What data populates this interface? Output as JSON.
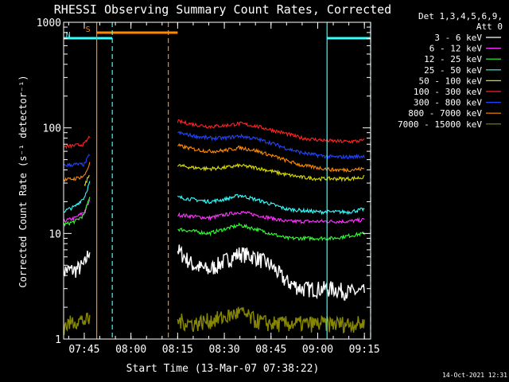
{
  "chart_data": {
    "type": "line",
    "title": "RHESSI Observing Summary Count Rates, Corrected",
    "xlabel": "Start Time (13-Mar-07 07:38:22)",
    "ylabel": "Corrected Count Rate (s⁻¹ detector⁻¹)",
    "yscale": "log",
    "ylim": [
      1,
      1000
    ],
    "xlim": [
      "07:38:22",
      "09:17:00"
    ],
    "x_ticks": [
      "07:45",
      "08:00",
      "08:15",
      "08:30",
      "08:45",
      "09:00",
      "09:15"
    ],
    "y_ticks": [
      "1",
      "10",
      "100",
      "1000"
    ],
    "legend_header": [
      "Det 1,3,4,5,6,9,",
      "Att 0"
    ],
    "legend_placement": "right",
    "timestamp": "14-Oct-2021 12:31",
    "series": [
      {
        "name": "3 - 6 keV",
        "color": "#ffffff",
        "x": [
          "07:38",
          "07:42",
          "07:45",
          "07:47",
          "08:15",
          "08:20",
          "08:25",
          "08:30",
          "08:35",
          "08:40",
          "08:45",
          "08:50",
          "08:55",
          "09:00",
          "09:05",
          "09:10",
          "09:15"
        ],
        "y": [
          4.5,
          4.5,
          5.0,
          7.5,
          7.0,
          5.0,
          4.5,
          5.5,
          6.5,
          6.0,
          5.0,
          3.5,
          3.0,
          3.0,
          3.0,
          2.8,
          2.8
        ]
      },
      {
        "name": "6 - 12 keV",
        "color": "#ff33ff",
        "x": [
          "07:38",
          "07:42",
          "07:45",
          "07:47",
          "08:15",
          "08:20",
          "08:25",
          "08:30",
          "08:35",
          "08:40",
          "08:45",
          "08:50",
          "08:55",
          "09:00",
          "09:05",
          "09:10",
          "09:15"
        ],
        "y": [
          13,
          14,
          16,
          21,
          15,
          14.5,
          14,
          15,
          16,
          15,
          14,
          13,
          13,
          13,
          13,
          13,
          13.5
        ]
      },
      {
        "name": "12 - 25 keV",
        "color": "#33ff33",
        "x": [
          "07:38",
          "07:42",
          "07:45",
          "07:47",
          "08:15",
          "08:20",
          "08:25",
          "08:30",
          "08:35",
          "08:40",
          "08:45",
          "08:50",
          "08:55",
          "09:00",
          "09:05",
          "09:10",
          "09:15"
        ],
        "y": [
          12,
          13,
          15,
          24,
          11,
          10.5,
          10,
          11,
          12,
          11,
          10,
          9,
          9,
          9,
          9,
          9.5,
          10
        ]
      },
      {
        "name": "25 - 50 keV",
        "color": "#33ffff",
        "x": [
          "07:38",
          "07:42",
          "07:45",
          "07:47",
          "08:15",
          "08:20",
          "08:25",
          "08:30",
          "08:35",
          "08:40",
          "08:45",
          "08:50",
          "08:55",
          "09:00",
          "09:05",
          "09:10",
          "09:15"
        ],
        "y": [
          16,
          18,
          22,
          32,
          22,
          21,
          20,
          21,
          23,
          21,
          19,
          17,
          16.5,
          16,
          16,
          16,
          17
        ]
      },
      {
        "name": "50 - 100 keV",
        "color": "#dddd00",
        "x": [
          "07:45",
          "07:47",
          "08:15",
          "08:20",
          "08:25",
          "08:30",
          "08:35",
          "08:40",
          "08:45",
          "08:50",
          "08:55",
          "09:00",
          "09:05",
          "09:10",
          "09:15"
        ],
        "y": [
          28,
          38,
          44,
          42,
          41,
          42,
          44,
          42,
          39,
          36,
          34,
          33,
          33,
          33,
          34
        ]
      },
      {
        "name": "100 - 300 keV",
        "color": "#ff2222",
        "x": [
          "07:38",
          "07:42",
          "07:45",
          "07:47",
          "08:15",
          "08:20",
          "08:25",
          "08:30",
          "08:35",
          "08:40",
          "08:45",
          "08:50",
          "08:55",
          "09:00",
          "09:05",
          "09:10",
          "09:15"
        ],
        "y": [
          66,
          68,
          70,
          85,
          115,
          108,
          103,
          105,
          110,
          104,
          96,
          88,
          80,
          77,
          75,
          74,
          76
        ]
      },
      {
        "name": "300 - 800 keV",
        "color": "#2244ff",
        "x": [
          "07:38",
          "07:42",
          "07:45",
          "07:47",
          "08:15",
          "08:20",
          "08:25",
          "08:30",
          "08:35",
          "08:40",
          "08:45",
          "08:50",
          "08:55",
          "09:00",
          "09:05",
          "09:10",
          "09:15"
        ],
        "y": [
          44,
          45,
          45,
          58,
          90,
          84,
          80,
          80,
          84,
          79,
          72,
          64,
          58,
          55,
          53,
          53,
          54
        ]
      },
      {
        "name": "800 - 7000 keV",
        "color": "#ff8800",
        "x": [
          "07:38",
          "07:42",
          "07:45",
          "07:47",
          "08:15",
          "08:20",
          "08:25",
          "08:30",
          "08:35",
          "08:40",
          "08:45",
          "08:50",
          "08:55",
          "09:00",
          "09:05",
          "09:10",
          "09:15"
        ],
        "y": [
          32,
          33,
          35,
          48,
          68,
          63,
          60,
          61,
          65,
          61,
          55,
          49,
          44,
          42,
          40,
          40,
          41
        ]
      },
      {
        "name": "7000 - 15000 keV",
        "color": "#888800",
        "x": [
          "07:38",
          "07:42",
          "07:45",
          "07:47",
          "08:15",
          "08:20",
          "08:25",
          "08:30",
          "08:35",
          "08:40",
          "08:45",
          "08:50",
          "08:55",
          "09:00",
          "09:05",
          "09:10",
          "09:15"
        ],
        "y": [
          1.3,
          1.5,
          1.5,
          1.5,
          1.5,
          1.4,
          1.5,
          1.6,
          1.8,
          1.5,
          1.4,
          1.4,
          1.4,
          1.4,
          1.4,
          1.4,
          1.4
        ]
      }
    ],
    "annotations": [
      {
        "label": "S",
        "color": "#ff8800",
        "x_start": "07:49",
        "x_end": "08:15"
      },
      {
        "label": "N",
        "color": "#33ffff",
        "x_start": "07:38",
        "x_end": "07:54"
      },
      {
        "label": "",
        "color": "#33ffff",
        "x_start": "09:03",
        "x_end": "09:17"
      }
    ],
    "vertical_markers": [
      {
        "x": "07:49",
        "color": "#ff8800",
        "style": "solid"
      },
      {
        "x": "07:54",
        "color": "#33ffff",
        "style": "dashed"
      },
      {
        "x": "08:12",
        "color": "#ff8800",
        "style": "dashed"
      },
      {
        "x": "09:03",
        "color": "#33ffff",
        "style": "solid"
      },
      {
        "x": "09:17",
        "color": "#33ffff",
        "style": "dashed"
      }
    ],
    "gaps": [
      [
        "07:47",
        "08:15"
      ]
    ]
  }
}
